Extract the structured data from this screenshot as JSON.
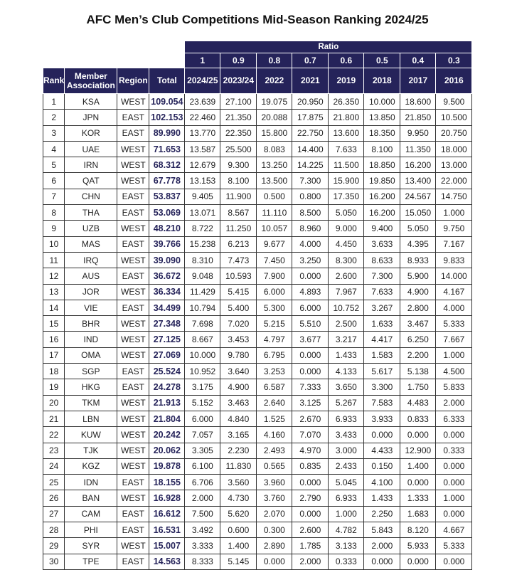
{
  "title": "AFC Men’s Club Competitions Mid-Season Ranking 2024/25",
  "colors": {
    "header_bg": "#25235a",
    "total_text": "#25235a"
  },
  "ratio_label": "Ratio",
  "ratios": [
    "1",
    "0.9",
    "0.8",
    "0.7",
    "0.6",
    "0.5",
    "0.4",
    "0.3"
  ],
  "columns": [
    "Rank",
    "Member Association",
    "Region",
    "Total",
    "2024/25",
    "2023/24",
    "2022",
    "2021",
    "2019",
    "2018",
    "2017",
    "2016"
  ],
  "rows": [
    [
      "1",
      "KSA",
      "WEST",
      "109.054",
      "23.639",
      "27.100",
      "19.075",
      "20.950",
      "26.350",
      "10.000",
      "18.600",
      "9.500"
    ],
    [
      "2",
      "JPN",
      "EAST",
      "102.153",
      "22.460",
      "21.350",
      "20.088",
      "17.875",
      "21.800",
      "13.850",
      "21.850",
      "10.500"
    ],
    [
      "3",
      "KOR",
      "EAST",
      "89.990",
      "13.770",
      "22.350",
      "15.800",
      "22.750",
      "13.600",
      "18.350",
      "9.950",
      "20.750"
    ],
    [
      "4",
      "UAE",
      "WEST",
      "71.653",
      "13.587",
      "25.500",
      "8.083",
      "14.400",
      "7.633",
      "8.100",
      "11.350",
      "18.000"
    ],
    [
      "5",
      "IRN",
      "WEST",
      "68.312",
      "12.679",
      "9.300",
      "13.250",
      "14.225",
      "11.500",
      "18.850",
      "16.200",
      "13.000"
    ],
    [
      "6",
      "QAT",
      "WEST",
      "67.778",
      "13.153",
      "8.100",
      "13.500",
      "7.300",
      "15.900",
      "19.850",
      "13.400",
      "22.000"
    ],
    [
      "7",
      "CHN",
      "EAST",
      "53.837",
      "9.405",
      "11.900",
      "0.500",
      "0.800",
      "17.350",
      "16.200",
      "24.567",
      "14.750"
    ],
    [
      "8",
      "THA",
      "EAST",
      "53.069",
      "13.071",
      "8.567",
      "11.110",
      "8.500",
      "5.050",
      "16.200",
      "15.050",
      "1.000"
    ],
    [
      "9",
      "UZB",
      "WEST",
      "48.210",
      "8.722",
      "11.250",
      "10.057",
      "8.960",
      "9.000",
      "9.400",
      "5.050",
      "9.750"
    ],
    [
      "10",
      "MAS",
      "EAST",
      "39.766",
      "15.238",
      "6.213",
      "9.677",
      "4.000",
      "4.450",
      "3.633",
      "4.395",
      "7.167"
    ],
    [
      "11",
      "IRQ",
      "WEST",
      "39.090",
      "8.310",
      "7.473",
      "7.450",
      "3.250",
      "8.300",
      "8.633",
      "8.933",
      "9.833"
    ],
    [
      "12",
      "AUS",
      "EAST",
      "36.672",
      "9.048",
      "10.593",
      "7.900",
      "0.000",
      "2.600",
      "7.300",
      "5.900",
      "14.000"
    ],
    [
      "13",
      "JOR",
      "WEST",
      "36.334",
      "11.429",
      "5.415",
      "6.000",
      "4.893",
      "7.967",
      "7.633",
      "4.900",
      "4.167"
    ],
    [
      "14",
      "VIE",
      "EAST",
      "34.499",
      "10.794",
      "5.400",
      "5.300",
      "6.000",
      "10.752",
      "3.267",
      "2.800",
      "4.000"
    ],
    [
      "15",
      "BHR",
      "WEST",
      "27.348",
      "7.698",
      "7.020",
      "5.215",
      "5.510",
      "2.500",
      "1.633",
      "3.467",
      "5.333"
    ],
    [
      "16",
      "IND",
      "WEST",
      "27.125",
      "8.667",
      "3.453",
      "4.797",
      "3.677",
      "3.217",
      "4.417",
      "6.250",
      "7.667"
    ],
    [
      "17",
      "OMA",
      "WEST",
      "27.069",
      "10.000",
      "9.780",
      "6.795",
      "0.000",
      "1.433",
      "1.583",
      "2.200",
      "1.000"
    ],
    [
      "18",
      "SGP",
      "EAST",
      "25.524",
      "10.952",
      "3.640",
      "3.253",
      "0.000",
      "4.133",
      "5.617",
      "5.138",
      "4.500"
    ],
    [
      "19",
      "HKG",
      "EAST",
      "24.278",
      "3.175",
      "4.900",
      "6.587",
      "7.333",
      "3.650",
      "3.300",
      "1.750",
      "5.833"
    ],
    [
      "20",
      "TKM",
      "WEST",
      "21.913",
      "5.152",
      "3.463",
      "2.640",
      "3.125",
      "5.267",
      "7.583",
      "4.483",
      "2.000"
    ],
    [
      "21",
      "LBN",
      "WEST",
      "21.804",
      "6.000",
      "4.840",
      "1.525",
      "2.670",
      "6.933",
      "3.933",
      "0.833",
      "6.333"
    ],
    [
      "22",
      "KUW",
      "WEST",
      "20.242",
      "7.057",
      "3.165",
      "4.160",
      "7.070",
      "3.433",
      "0.000",
      "0.000",
      "0.000"
    ],
    [
      "23",
      "TJK",
      "WEST",
      "20.062",
      "3.305",
      "2.230",
      "2.493",
      "4.970",
      "3.000",
      "4.433",
      "12.900",
      "0.333"
    ],
    [
      "24",
      "KGZ",
      "WEST",
      "19.878",
      "6.100",
      "11.830",
      "0.565",
      "0.835",
      "2.433",
      "0.150",
      "1.400",
      "0.000"
    ],
    [
      "25",
      "IDN",
      "EAST",
      "18.155",
      "6.706",
      "3.560",
      "3.960",
      "0.000",
      "5.045",
      "4.100",
      "0.000",
      "0.000"
    ],
    [
      "26",
      "BAN",
      "WEST",
      "16.928",
      "2.000",
      "4.730",
      "3.760",
      "2.790",
      "6.933",
      "1.433",
      "1.333",
      "1.000"
    ],
    [
      "27",
      "CAM",
      "EAST",
      "16.612",
      "7.500",
      "5.620",
      "2.070",
      "0.000",
      "1.000",
      "2.250",
      "1.683",
      "0.000"
    ],
    [
      "28",
      "PHI",
      "EAST",
      "16.531",
      "3.492",
      "0.600",
      "0.300",
      "2.600",
      "4.782",
      "5.843",
      "8.120",
      "4.667"
    ],
    [
      "29",
      "SYR",
      "WEST",
      "15.007",
      "3.333",
      "1.400",
      "2.890",
      "1.785",
      "3.133",
      "2.000",
      "5.933",
      "5.333"
    ],
    [
      "30",
      "TPE",
      "EAST",
      "14.563",
      "8.333",
      "5.145",
      "0.000",
      "2.000",
      "0.333",
      "0.000",
      "0.000",
      "0.000"
    ]
  ]
}
